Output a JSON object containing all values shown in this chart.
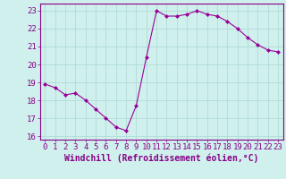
{
  "x": [
    0,
    1,
    2,
    3,
    4,
    5,
    6,
    7,
    8,
    9,
    10,
    11,
    12,
    13,
    14,
    15,
    16,
    17,
    18,
    19,
    20,
    21,
    22,
    23
  ],
  "y": [
    18.9,
    18.7,
    18.3,
    18.4,
    18.0,
    17.5,
    17.0,
    16.5,
    16.3,
    17.7,
    20.4,
    23.0,
    22.7,
    22.7,
    22.8,
    23.0,
    22.8,
    22.7,
    22.4,
    22.0,
    21.5,
    21.1,
    20.8,
    20.7
  ],
  "line_color": "#990099",
  "marker": "D",
  "markersize": 2.0,
  "linewidth": 0.8,
  "bg_color": "#cff0ec",
  "grid_color": "#aad8d4",
  "xlabel": "Windchill (Refroidissement éolien,°C)",
  "ylabel": "",
  "xlim": [
    -0.5,
    23.5
  ],
  "ylim": [
    15.8,
    23.4
  ],
  "yticks": [
    16,
    17,
    18,
    19,
    20,
    21,
    22,
    23
  ],
  "xticks": [
    0,
    1,
    2,
    3,
    4,
    5,
    6,
    7,
    8,
    9,
    10,
    11,
    12,
    13,
    14,
    15,
    16,
    17,
    18,
    19,
    20,
    21,
    22,
    23
  ],
  "xlabel_fontsize": 7.0,
  "tick_fontsize": 6.5,
  "axis_color": "#880088",
  "tick_color": "#880088",
  "spine_color": "#880088"
}
